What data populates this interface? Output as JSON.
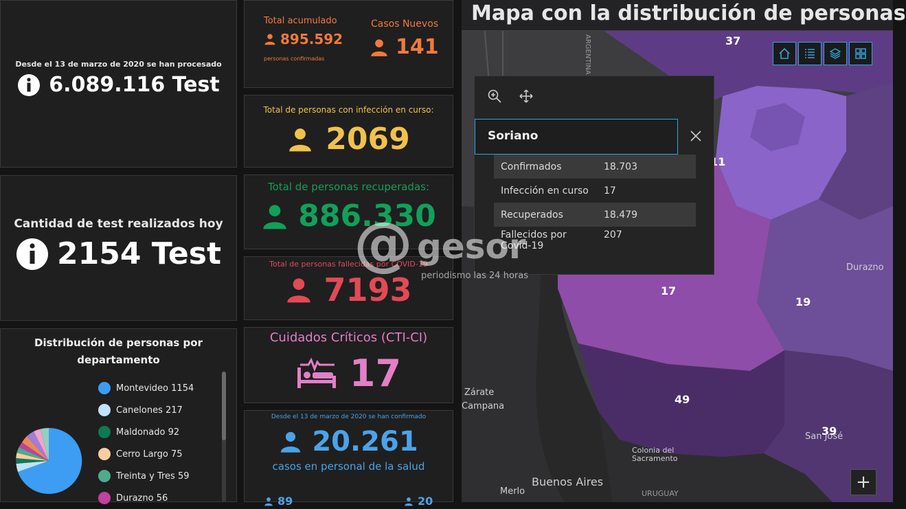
{
  "tests_total": {
    "caption": "Desde el 13 de marzo de 2020 se han procesado",
    "value": "6.089.116 Test"
  },
  "tests_today": {
    "caption": "Cantidad de test realizados hoy",
    "value": "2154 Test"
  },
  "distribution": {
    "title_line1": "Distribución de personas por",
    "title_line2": "departamento",
    "items": [
      {
        "name": "Montevideo",
        "count": "1154",
        "color": "#3d9df2"
      },
      {
        "name": "Canelones",
        "count": "217",
        "color": "#bfe3fb"
      },
      {
        "name": "Maldonado",
        "count": "92",
        "color": "#0d7a55"
      },
      {
        "name": "Cerro Largo",
        "count": "75",
        "color": "#f9cda0"
      },
      {
        "name": "Treinta y Tres",
        "count": "59",
        "color": "#4eab8c"
      },
      {
        "name": "Durazno",
        "count": "56",
        "color": "#c2409f"
      }
    ]
  },
  "accumulated": {
    "label": "Total acumulado",
    "value": "895.592",
    "sub": "personas confirmadas",
    "new_label": "Casos Nuevos",
    "new_value": "141",
    "color": "#f07a3c"
  },
  "active": {
    "label": "Total de personas con infección en curso:",
    "value": "2069",
    "color": "#f2c14b"
  },
  "recovered": {
    "label": "Total de personas recuperadas:",
    "value": "886.330",
    "color": "#11a05a"
  },
  "deceased": {
    "label": "Total de personas fallecidas por COVID-19",
    "value": "7193",
    "color": "#e24a55"
  },
  "critical": {
    "label": "Cuidados Críticos (CTI-CI)",
    "value": "17",
    "color": "#e27fc7"
  },
  "health_staff": {
    "caption": "Desde el 13 de marzo de 2020 se han confirmado",
    "value": "20.261",
    "sub": "casos en personal de la salud",
    "partial_left": "89",
    "partial_right": "20",
    "color": "#4aa3ea"
  },
  "watermark": {
    "brand": "gesor",
    "tagline": "periodismo las 24 horas"
  },
  "map": {
    "title": "Mapa con la distribución de personas",
    "region_numbers": [
      "37",
      "11",
      "17",
      "19",
      "49",
      "39"
    ],
    "places": [
      "Durazno",
      "Colonia del Sacramento",
      "Buenos Aires",
      "Merlo",
      "San José",
      "Zárate",
      "Campana",
      "URUGUAY",
      "ARGENTINA"
    ],
    "popup": {
      "title": "Soriano",
      "rows": [
        {
          "k": "Confirmados",
          "v": "18.703"
        },
        {
          "k": "Infección en curso",
          "v": "17"
        },
        {
          "k": "Recuperados",
          "v": "18.479"
        },
        {
          "k": "Fallecidos por Covid-19",
          "v": "207"
        }
      ]
    },
    "zoom_in": "+"
  }
}
